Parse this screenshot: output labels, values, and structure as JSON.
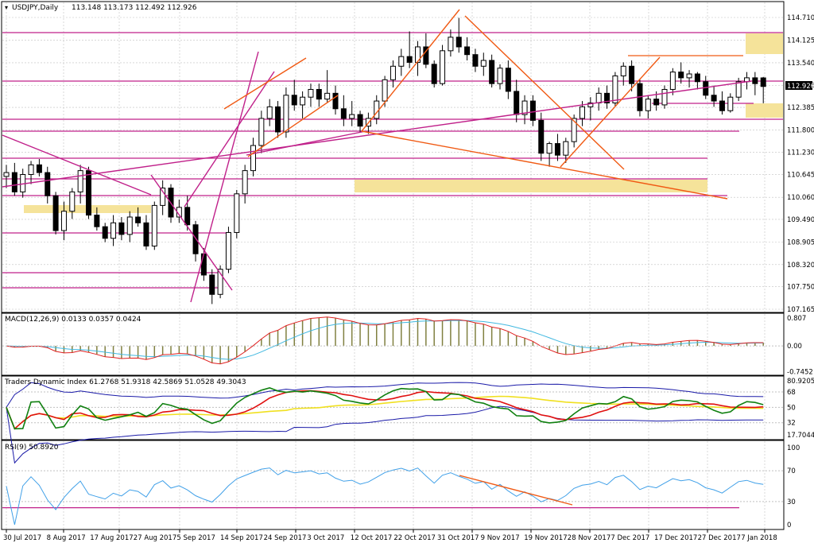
{
  "window": {
    "symbol_title": "USDJPY,Daily",
    "ohlc": "113.148 113.173 112.492 112.926"
  },
  "colors": {
    "bull_candle": "#ffffff",
    "bear_candle": "#000000",
    "candle_outline": "#000000",
    "grid": "#c0c0c0",
    "magenta_line": "#c0208a",
    "orange_line": "#f05a14",
    "highlight_zone": "#f5e39a",
    "macd_histogram": "#808040",
    "macd_signal_red": "#e02020",
    "macd_main_blue": "#40b8e0",
    "tdi_band_blue": "#1a1aa8",
    "tdi_yellow": "#f0e020",
    "tdi_green": "#108010",
    "tdi_red": "#e01010",
    "rsi_blue": "#40a0e8",
    "current_price_label_bg": "#000000"
  },
  "chart_data": [
    {
      "type": "candlestick",
      "title": "USDJPY,Daily",
      "y_ticks": [
        "114.710",
        "114.125",
        "113.540",
        "112.955",
        "112.385",
        "111.800",
        "111.230",
        "110.645",
        "110.060",
        "109.490",
        "108.905",
        "108.320",
        "107.750",
        "107.165"
      ],
      "ylim": [
        107.165,
        114.885
      ],
      "current_price": "112.926",
      "x_ticks": [
        "30 Jul 2017",
        "8 Aug 2017",
        "17 Aug 2017",
        "27 Aug 2017",
        "5 Sep 2017",
        "14 Sep 2017",
        "24 Sep 2017",
        "3 Oct 2017",
        "12 Oct 2017",
        "22 Oct 2017",
        "31 Oct 2017",
        "9 Nov 2017",
        "19 Nov 2017",
        "28 Nov 2017",
        "7 Dec 2017",
        "17 Dec 2017",
        "27 Dec 2017",
        "7 Jan 2018"
      ],
      "ohlc": [
        [
          110.6,
          110.9,
          110.3,
          110.7
        ],
        [
          110.7,
          110.95,
          110.1,
          110.2
        ],
        [
          110.2,
          110.8,
          110.05,
          110.65
        ],
        [
          110.65,
          111.0,
          110.4,
          110.9
        ],
        [
          110.9,
          111.05,
          110.6,
          110.7
        ],
        [
          110.7,
          110.85,
          109.9,
          110.1
        ],
        [
          110.1,
          110.2,
          109.1,
          109.2
        ],
        [
          109.2,
          109.95,
          108.95,
          109.7
        ],
        [
          109.7,
          110.3,
          109.5,
          110.2
        ],
        [
          110.2,
          110.9,
          109.9,
          110.75
        ],
        [
          110.75,
          110.85,
          109.5,
          109.6
        ],
        [
          109.6,
          109.8,
          109.2,
          109.3
        ],
        [
          109.3,
          109.4,
          108.9,
          109.0
        ],
        [
          109.0,
          109.6,
          108.8,
          109.4
        ],
        [
          109.4,
          109.55,
          108.95,
          109.1
        ],
        [
          109.1,
          109.7,
          108.9,
          109.55
        ],
        [
          109.55,
          109.8,
          109.3,
          109.4
        ],
        [
          109.4,
          109.6,
          108.7,
          108.8
        ],
        [
          108.8,
          109.95,
          108.7,
          109.85
        ],
        [
          109.85,
          110.5,
          109.6,
          110.3
        ],
        [
          110.3,
          110.4,
          109.4,
          109.55
        ],
        [
          109.55,
          110.0,
          109.4,
          109.8
        ],
        [
          109.8,
          110.1,
          109.2,
          109.35
        ],
        [
          109.35,
          109.45,
          108.4,
          108.6
        ],
        [
          108.6,
          108.75,
          107.9,
          108.05
        ],
        [
          108.05,
          108.2,
          107.3,
          107.55
        ],
        [
          107.55,
          108.3,
          107.45,
          108.2
        ],
        [
          108.2,
          109.3,
          108.1,
          109.15
        ],
        [
          109.15,
          110.25,
          109.0,
          110.15
        ],
        [
          110.15,
          110.9,
          109.9,
          110.75
        ],
        [
          110.75,
          111.6,
          110.6,
          111.4
        ],
        [
          111.4,
          112.3,
          111.2,
          112.1
        ],
        [
          112.1,
          112.6,
          111.9,
          112.4
        ],
        [
          112.4,
          112.55,
          111.6,
          111.75
        ],
        [
          111.75,
          112.9,
          111.6,
          112.7
        ],
        [
          112.7,
          113.1,
          112.3,
          112.45
        ],
        [
          112.45,
          112.8,
          112.1,
          112.65
        ],
        [
          112.65,
          113.0,
          112.4,
          112.85
        ],
        [
          112.85,
          113.0,
          112.4,
          112.6
        ],
        [
          112.6,
          113.35,
          112.5,
          112.75
        ],
        [
          112.75,
          112.95,
          112.2,
          112.35
        ],
        [
          112.35,
          112.7,
          111.9,
          112.1
        ],
        [
          112.1,
          112.55,
          111.9,
          112.2
        ],
        [
          112.2,
          112.3,
          111.75,
          111.9
        ],
        [
          111.9,
          112.25,
          111.7,
          112.1
        ],
        [
          112.1,
          112.7,
          111.95,
          112.55
        ],
        [
          112.55,
          113.2,
          112.4,
          113.1
        ],
        [
          113.1,
          113.6,
          112.9,
          113.45
        ],
        [
          113.45,
          113.9,
          113.2,
          113.7
        ],
        [
          113.7,
          114.35,
          113.4,
          113.55
        ],
        [
          113.55,
          114.1,
          113.2,
          113.95
        ],
        [
          113.95,
          114.3,
          113.4,
          113.5
        ],
        [
          113.5,
          113.6,
          112.9,
          113.0
        ],
        [
          113.0,
          114.0,
          112.95,
          113.85
        ],
        [
          113.85,
          114.4,
          113.7,
          114.2
        ],
        [
          114.2,
          114.7,
          113.8,
          113.95
        ],
        [
          113.95,
          114.2,
          113.6,
          113.75
        ],
        [
          113.75,
          113.9,
          113.3,
          113.45
        ],
        [
          113.45,
          113.8,
          113.2,
          113.6
        ],
        [
          113.6,
          113.75,
          112.9,
          113.0
        ],
        [
          113.0,
          113.5,
          112.85,
          113.4
        ],
        [
          113.4,
          113.6,
          112.6,
          112.8
        ],
        [
          112.8,
          113.1,
          112.0,
          112.2
        ],
        [
          112.2,
          112.7,
          111.95,
          112.55
        ],
        [
          112.55,
          112.7,
          111.9,
          112.05
        ],
        [
          112.05,
          112.25,
          111.0,
          111.2
        ],
        [
          111.2,
          111.5,
          110.85,
          111.45
        ],
        [
          111.45,
          111.7,
          111.0,
          111.15
        ],
        [
          111.15,
          111.6,
          110.95,
          111.5
        ],
        [
          111.5,
          112.2,
          111.35,
          112.1
        ],
        [
          112.1,
          112.55,
          111.9,
          112.4
        ],
        [
          112.4,
          112.65,
          112.05,
          112.5
        ],
        [
          112.5,
          112.9,
          112.3,
          112.75
        ],
        [
          112.75,
          112.95,
          112.35,
          112.5
        ],
        [
          112.5,
          113.3,
          112.4,
          113.2
        ],
        [
          113.2,
          113.55,
          112.95,
          113.45
        ],
        [
          113.45,
          113.6,
          112.8,
          113.0
        ],
        [
          113.0,
          113.1,
          112.15,
          112.3
        ],
        [
          112.3,
          112.7,
          112.1,
          112.6
        ],
        [
          112.6,
          112.8,
          112.3,
          112.45
        ],
        [
          112.45,
          112.95,
          112.35,
          112.85
        ],
        [
          112.85,
          113.4,
          112.7,
          113.3
        ],
        [
          113.3,
          113.55,
          113.0,
          113.15
        ],
        [
          113.15,
          113.35,
          112.9,
          113.25
        ],
        [
          113.25,
          113.3,
          112.85,
          113.05
        ],
        [
          113.05,
          113.2,
          112.6,
          112.7
        ],
        [
          112.7,
          112.95,
          112.4,
          112.55
        ],
        [
          112.55,
          112.8,
          112.2,
          112.3
        ],
        [
          112.3,
          112.75,
          112.25,
          112.65
        ],
        [
          112.65,
          113.15,
          112.55,
          113.05
        ],
        [
          113.05,
          113.3,
          112.85,
          113.15
        ],
        [
          113.15,
          113.3,
          112.7,
          113.0
        ],
        [
          113.148,
          113.173,
          112.492,
          112.926
        ]
      ]
    },
    {
      "type": "line",
      "title": "MACD(12,26,9) 0.0133 0.0357 0.0424",
      "y_ticks": [
        "0.807",
        "0.00",
        "-0.7452"
      ],
      "ylim": [
        -0.8,
        0.85
      ]
    },
    {
      "type": "line",
      "title": "Traders Dynamic Index 61.2768 51.9318 42.5869 51.0528 49.3043",
      "y_ticks": [
        "80.9205",
        "68",
        "50",
        "32",
        "17.7044"
      ],
      "ylim": [
        15,
        82
      ]
    },
    {
      "type": "line",
      "title": "RSI(9) 50.8920",
      "y_ticks": [
        "100",
        "70",
        "30",
        "0"
      ],
      "ylim": [
        0,
        100
      ]
    }
  ]
}
